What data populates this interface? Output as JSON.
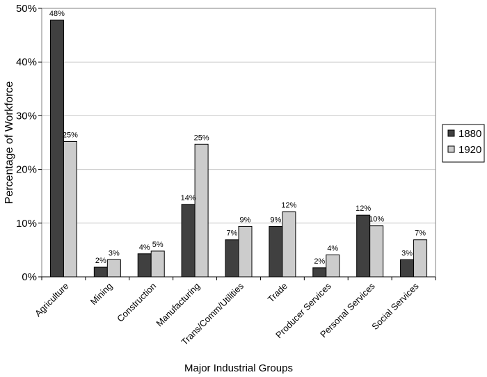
{
  "chart_data": {
    "type": "bar",
    "title": "",
    "xlabel": "Major Industrial Groups",
    "ylabel": "Percentage of Workforce",
    "ylim": [
      0,
      50
    ],
    "yticks": [
      0,
      10,
      20,
      30,
      40,
      50
    ],
    "ytick_labels": [
      "0%",
      "10%",
      "20%",
      "30%",
      "40%",
      "50%"
    ],
    "grid": true,
    "legend_position": "right",
    "categories": [
      "Agriculture",
      "Mining",
      "Construction",
      "Manufacturing",
      "Trans/Comm/Utilities",
      "Trade",
      "Producer Services",
      "Personal Services",
      "Social Services"
    ],
    "series": [
      {
        "name": "1880",
        "color": "#404040",
        "values": [
          47.8,
          1.8,
          4.3,
          13.5,
          6.9,
          9.4,
          1.7,
          11.5,
          3.2
        ],
        "labels": [
          "48%",
          "2%",
          "4%",
          "14%",
          "7%",
          "9%",
          "2%",
          "12%",
          "3%"
        ]
      },
      {
        "name": "1920",
        "color": "#cccccc",
        "values": [
          25.2,
          3.2,
          4.8,
          24.7,
          9.4,
          12.1,
          4.1,
          9.5,
          6.9
        ],
        "labels": [
          "25%",
          "3%",
          "5%",
          "25%",
          "9%",
          "12%",
          "4%",
          "10%",
          "7%"
        ]
      }
    ]
  }
}
